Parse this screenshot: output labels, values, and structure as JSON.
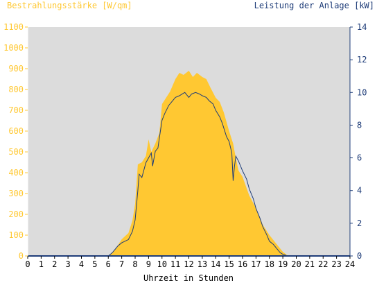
{
  "chart_data": {
    "type": "area",
    "left_axis_title": "Bestrahlungsstärke [W/qm]",
    "right_axis_title": "Leistung der Anlage [kW]",
    "xlabel": "Uhrzeit in Stunden",
    "x_ticks": [
      "0",
      "1",
      "2",
      "3",
      "4",
      "5",
      "6",
      "7",
      "8",
      "9",
      "10",
      "11",
      "12",
      "13",
      "14",
      "15",
      "16",
      "17",
      "18",
      "19",
      "20",
      "21",
      "22",
      "23",
      "24"
    ],
    "y_left_ticks": [
      "0",
      "100",
      "200",
      "300",
      "400",
      "500",
      "600",
      "700",
      "800",
      "900",
      "1000",
      "1100"
    ],
    "y_right_ticks": [
      "0",
      "2",
      "4",
      "6",
      "8",
      "10",
      "12",
      "14"
    ],
    "xlim": [
      0,
      24
    ],
    "ylim_left": [
      0,
      1100
    ],
    "ylim_right": [
      0,
      14
    ],
    "grid": false,
    "colors": {
      "plot_background": "#dcdcdc",
      "irradiance_fill": "#ffc832",
      "power_line": "#1e3c78",
      "left_axis_text": "#ffc832",
      "right_axis_text": "#1e3c78"
    },
    "series": [
      {
        "axis": "left",
        "style": "filled-area",
        "x": [
          6.0,
          6.5,
          7.0,
          7.5,
          7.8,
          8.0,
          8.2,
          8.5,
          8.8,
          9.0,
          9.2,
          9.5,
          9.8,
          10.0,
          10.3,
          10.6,
          11.0,
          11.3,
          11.6,
          12.0,
          12.3,
          12.6,
          13.0,
          13.3,
          13.6,
          14.0,
          14.3,
          14.6,
          15.0,
          15.3,
          15.5,
          15.7,
          16.0,
          16.5,
          17.0,
          17.5,
          18.0,
          18.5,
          19.0,
          19.3,
          19.5
        ],
        "values": [
          0,
          30,
          80,
          110,
          170,
          250,
          440,
          450,
          480,
          560,
          500,
          540,
          590,
          730,
          760,
          790,
          850,
          880,
          870,
          890,
          860,
          880,
          860,
          850,
          810,
          760,
          740,
          690,
          600,
          540,
          470,
          410,
          380,
          290,
          230,
          150,
          100,
          60,
          20,
          5,
          0
        ]
      },
      {
        "axis": "right",
        "style": "line",
        "x": [
          6.0,
          6.3,
          6.7,
          7.0,
          7.5,
          7.8,
          8.0,
          8.2,
          8.3,
          8.5,
          8.8,
          9.0,
          9.2,
          9.3,
          9.5,
          9.7,
          9.8,
          10.0,
          10.2,
          10.5,
          10.7,
          11.0,
          11.3,
          11.5,
          11.7,
          12.0,
          12.2,
          12.5,
          12.8,
          13.0,
          13.3,
          13.5,
          13.8,
          14.0,
          14.3,
          14.5,
          14.8,
          15.0,
          15.2,
          15.3,
          15.4,
          15.5,
          15.7,
          16.0,
          16.3,
          16.5,
          16.8,
          17.0,
          17.3,
          17.5,
          17.8,
          18.0,
          18.3,
          18.5,
          18.8,
          19.0,
          19.2,
          19.3
        ],
        "values": [
          0,
          0.2,
          0.6,
          0.8,
          1.0,
          1.5,
          2.2,
          4.0,
          5.0,
          4.8,
          5.7,
          6.0,
          6.3,
          5.5,
          6.4,
          6.6,
          7.2,
          8.3,
          8.7,
          9.2,
          9.4,
          9.7,
          9.8,
          9.9,
          10.0,
          9.7,
          9.9,
          10.0,
          9.9,
          9.8,
          9.7,
          9.5,
          9.3,
          8.9,
          8.5,
          8.1,
          7.3,
          7.0,
          6.3,
          4.6,
          5.5,
          6.1,
          5.8,
          5.2,
          4.7,
          4.1,
          3.5,
          2.9,
          2.3,
          1.8,
          1.3,
          0.9,
          0.7,
          0.5,
          0.2,
          0.1,
          0.05,
          0
        ]
      }
    ]
  }
}
